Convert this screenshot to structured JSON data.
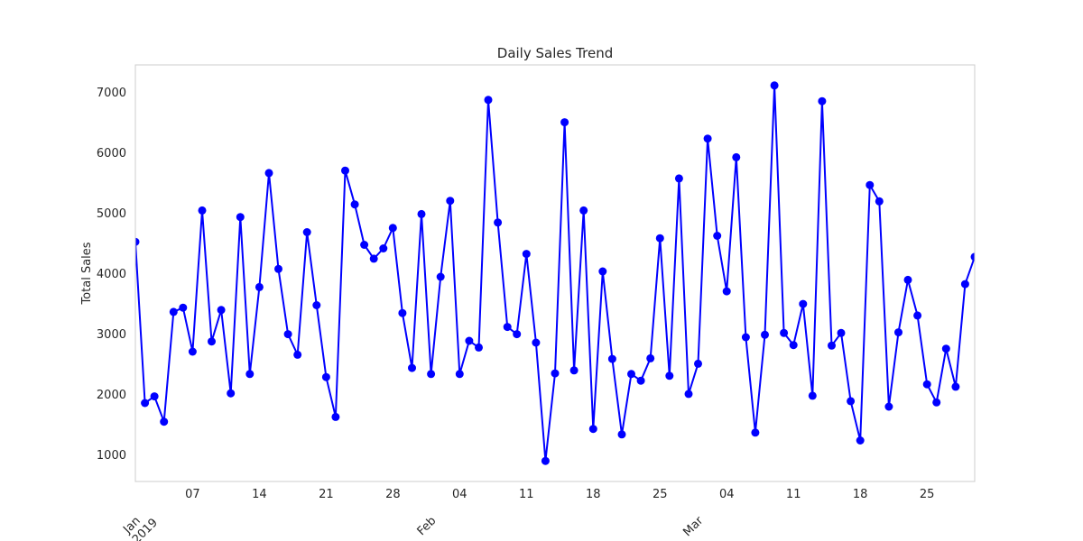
{
  "chart_data": {
    "type": "line",
    "title": "Daily Sales Trend",
    "xlabel": "",
    "ylabel": "Total Sales",
    "grid": false,
    "legend": "none",
    "line_color": "#0000ff",
    "marker_color": "#0000ff",
    "frame_color": "#cccccc",
    "xlim": [
      "2019-01-01",
      "2019-03-30"
    ],
    "ylim": [
      550,
      7450
    ],
    "y_ticks": [
      1000,
      2000,
      3000,
      4000,
      5000,
      6000,
      7000
    ],
    "x_minor_ticks": [
      {
        "date": "2019-01-07",
        "label": "07"
      },
      {
        "date": "2019-01-14",
        "label": "14"
      },
      {
        "date": "2019-01-21",
        "label": "21"
      },
      {
        "date": "2019-01-28",
        "label": "28"
      },
      {
        "date": "2019-02-04",
        "label": "04"
      },
      {
        "date": "2019-02-11",
        "label": "11"
      },
      {
        "date": "2019-02-18",
        "label": "18"
      },
      {
        "date": "2019-02-25",
        "label": "25"
      },
      {
        "date": "2019-03-04",
        "label": "04"
      },
      {
        "date": "2019-03-11",
        "label": "11"
      },
      {
        "date": "2019-03-18",
        "label": "18"
      },
      {
        "date": "2019-03-25",
        "label": "25"
      }
    ],
    "x_major_ticks": [
      {
        "date": "2019-01-01",
        "label": "Jan\n2019"
      },
      {
        "date": "2019-02-01",
        "label": "Feb"
      },
      {
        "date": "2019-03-01",
        "label": "Mar"
      }
    ],
    "start_date": "2019-01-01",
    "x": [
      "2019-01-01",
      "2019-01-02",
      "2019-01-03",
      "2019-01-04",
      "2019-01-05",
      "2019-01-06",
      "2019-01-07",
      "2019-01-08",
      "2019-01-09",
      "2019-01-10",
      "2019-01-11",
      "2019-01-12",
      "2019-01-13",
      "2019-01-14",
      "2019-01-15",
      "2019-01-16",
      "2019-01-17",
      "2019-01-18",
      "2019-01-19",
      "2019-01-20",
      "2019-01-21",
      "2019-01-22",
      "2019-01-23",
      "2019-01-24",
      "2019-01-25",
      "2019-01-26",
      "2019-01-27",
      "2019-01-28",
      "2019-01-29",
      "2019-01-30",
      "2019-01-31",
      "2019-02-01",
      "2019-02-02",
      "2019-02-03",
      "2019-02-04",
      "2019-02-05",
      "2019-02-06",
      "2019-02-07",
      "2019-02-08",
      "2019-02-09",
      "2019-02-10",
      "2019-02-11",
      "2019-02-12",
      "2019-02-13",
      "2019-02-14",
      "2019-02-15",
      "2019-02-16",
      "2019-02-17",
      "2019-02-18",
      "2019-02-19",
      "2019-02-20",
      "2019-02-21",
      "2019-02-22",
      "2019-02-23",
      "2019-02-24",
      "2019-02-25",
      "2019-02-26",
      "2019-02-27",
      "2019-02-28",
      "2019-03-01",
      "2019-03-02",
      "2019-03-03",
      "2019-03-04",
      "2019-03-05",
      "2019-03-06",
      "2019-03-07",
      "2019-03-08",
      "2019-03-09",
      "2019-03-10",
      "2019-03-11",
      "2019-03-12",
      "2019-03-13",
      "2019-03-14",
      "2019-03-15",
      "2019-03-16",
      "2019-03-17",
      "2019-03-18",
      "2019-03-19",
      "2019-03-20",
      "2019-03-21",
      "2019-03-22",
      "2019-03-23",
      "2019-03-24",
      "2019-03-25",
      "2019-03-26",
      "2019-03-27",
      "2019-03-28",
      "2019-03-29",
      "2019-03-30"
    ],
    "values": [
      4520,
      1850,
      1960,
      1540,
      3360,
      3430,
      2700,
      5040,
      2870,
      3390,
      2010,
      4930,
      2330,
      3770,
      5660,
      4070,
      2990,
      2650,
      4680,
      3470,
      2280,
      1620,
      5700,
      5140,
      4470,
      4240,
      4410,
      4750,
      3340,
      2430,
      4980,
      2330,
      3940,
      5200,
      2330,
      2880,
      2770,
      6870,
      4840,
      3110,
      2990,
      4320,
      2850,
      890,
      2340,
      6500,
      2390,
      5040,
      1420,
      4030,
      2580,
      1330,
      2330,
      2220,
      2590,
      4580,
      2300,
      5570,
      2000,
      2500,
      6230,
      4620,
      3700,
      5920,
      2940,
      1360,
      2980,
      7110,
      3010,
      2810,
      3490,
      1970,
      6850,
      2800,
      3010,
      1880,
      1230,
      5460,
      5190,
      1790,
      3020,
      3890,
      3300,
      2160,
      1860,
      2750,
      2120,
      3820,
      4270
    ]
  }
}
